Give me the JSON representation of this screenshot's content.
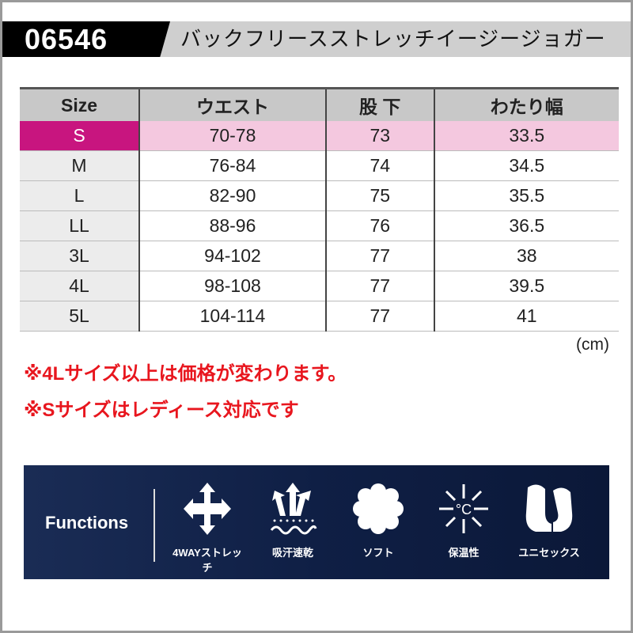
{
  "header": {
    "code": "06546",
    "title": "バックフリースストレッチイージージョガー"
  },
  "table": {
    "headers": [
      "Size",
      "ウエスト",
      "股 下",
      "わたり幅"
    ],
    "rows": [
      [
        "S",
        "70-78",
        "73",
        "33.5"
      ],
      [
        "M",
        "76-84",
        "74",
        "34.5"
      ],
      [
        "L",
        "82-90",
        "75",
        "35.5"
      ],
      [
        "LL",
        "88-96",
        "76",
        "36.5"
      ],
      [
        "3L",
        "94-102",
        "77",
        "38"
      ],
      [
        "4L",
        "98-108",
        "77",
        "39.5"
      ],
      [
        "5L",
        "104-114",
        "77",
        "41"
      ]
    ],
    "highlight_color": "#c8157f"
  },
  "unit": "(cm)",
  "notes": [
    "※4Lサイズ以上は価格が変わります。",
    "※Sサイズはレディース対応です"
  ],
  "functions": {
    "title": "Functions",
    "items": [
      {
        "icon": "four-way-arrows-icon",
        "label": "4WAYストレッチ"
      },
      {
        "icon": "sweat-wicking-icon",
        "label": "吸汗速乾"
      },
      {
        "icon": "soft-cloud-icon",
        "label": "ソフト"
      },
      {
        "icon": "warmth-icon",
        "label": "保温性"
      },
      {
        "icon": "unisex-icon",
        "label": "ユニセックス"
      }
    ]
  }
}
